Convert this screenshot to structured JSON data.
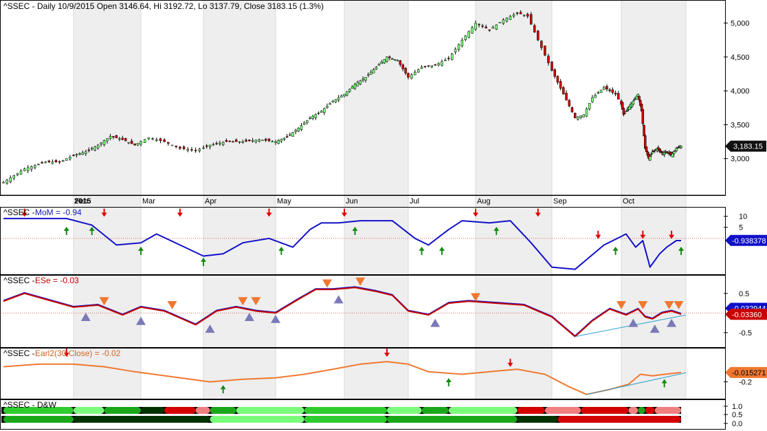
{
  "chart_data": [
    {
      "type": "candlestick",
      "title": "^SSEC - Daily 10/9/2015 Open 3146.64, Hi 3192.72, Lo 3137.79, Close 3183.15 (1.3%)",
      "ylim": [
        2500,
        5300
      ],
      "yticks": [
        3000,
        3500,
        4000,
        4500,
        5000
      ],
      "ytick_labels": [
        "3,000",
        "3,500",
        "4,000",
        "4,500",
        "5,000"
      ],
      "last_value_label": "3,183.15",
      "last_value": 3183.15,
      "x_labels": [
        "2015",
        "Feb",
        "Mar",
        "Apr",
        "May",
        "Jun",
        "Jul",
        "Aug",
        "Sep",
        "Oct"
      ],
      "price_points": [
        [
          0,
          2650
        ],
        [
          6,
          2850
        ],
        [
          12,
          2950
        ],
        [
          16,
          2950
        ],
        [
          20,
          3050
        ],
        [
          24,
          3100
        ],
        [
          28,
          3200
        ],
        [
          32,
          3330
        ],
        [
          36,
          3280
        ],
        [
          40,
          3200
        ],
        [
          44,
          3310
        ],
        [
          48,
          3250
        ],
        [
          52,
          3150
        ],
        [
          56,
          3120
        ],
        [
          60,
          3200
        ],
        [
          65,
          3250
        ],
        [
          70,
          3250
        ],
        [
          75,
          3280
        ],
        [
          80,
          3250
        ],
        [
          84,
          3320
        ],
        [
          88,
          3450
        ],
        [
          92,
          3600
        ],
        [
          96,
          3700
        ],
        [
          100,
          3850
        ],
        [
          104,
          3950
        ],
        [
          108,
          4100
        ],
        [
          112,
          4200
        ],
        [
          116,
          4350
        ],
        [
          120,
          4500
        ],
        [
          124,
          4450
        ],
        [
          128,
          4200
        ],
        [
          132,
          4350
        ],
        [
          136,
          4380
        ],
        [
          140,
          4480
        ],
        [
          144,
          4750
        ],
        [
          148,
          5000
        ],
        [
          152,
          4900
        ],
        [
          156,
          5050
        ],
        [
          160,
          5150
        ],
        [
          163,
          5100
        ],
        [
          166,
          4750
        ],
        [
          170,
          4300
        ],
        [
          174,
          3950
        ],
        [
          178,
          3600
        ],
        [
          181,
          3650
        ],
        [
          184,
          3900
        ],
        [
          188,
          4050
        ],
        [
          192,
          3950
        ],
        [
          196,
          3650
        ],
        [
          200,
          3750
        ],
        [
          204,
          3850
        ],
        [
          208,
          3950
        ],
        [
          211,
          3700
        ],
        [
          214,
          3150
        ],
        [
          217,
          3000
        ],
        [
          220,
          3100
        ],
        [
          224,
          3150
        ],
        [
          228,
          3080
        ],
        [
          232,
          3100
        ],
        [
          236,
          3050
        ],
        [
          240,
          3150
        ],
        [
          244,
          3183
        ]
      ],
      "shaded_months": [
        1,
        3,
        5,
        7,
        9
      ]
    },
    {
      "type": "line",
      "title": "^SSEC - MoM = -0.94",
      "series_label": "MoM = -0.94",
      "ylim": [
        -15,
        13
      ],
      "yticks": [
        10,
        5
      ],
      "ytick_labels": [
        "10",
        "5"
      ],
      "last_value_label": "-0.938378",
      "last_value": -0.938,
      "ref_value": 0,
      "points": [
        [
          0,
          9
        ],
        [
          10,
          9
        ],
        [
          18,
          9
        ],
        [
          26,
          6
        ],
        [
          34,
          -3
        ],
        [
          42,
          -2
        ],
        [
          46,
          2
        ],
        [
          52,
          -3
        ],
        [
          58,
          -8
        ],
        [
          64,
          -7
        ],
        [
          70,
          -2
        ],
        [
          78,
          0
        ],
        [
          86,
          -4
        ],
        [
          92,
          4
        ],
        [
          96,
          7
        ],
        [
          102,
          7
        ],
        [
          110,
          8
        ],
        [
          116,
          8
        ],
        [
          122,
          8
        ],
        [
          130,
          0
        ],
        [
          134,
          -3
        ],
        [
          140,
          4
        ],
        [
          144,
          8
        ],
        [
          152,
          7
        ],
        [
          158,
          8
        ],
        [
          164,
          -2
        ],
        [
          170,
          -13
        ],
        [
          178,
          -14
        ],
        [
          188,
          -3
        ],
        [
          198,
          2
        ],
        [
          206,
          -4
        ],
        [
          212,
          -1
        ],
        [
          218,
          -13
        ],
        [
          226,
          -7
        ],
        [
          232,
          -4
        ],
        [
          240,
          -1
        ],
        [
          244,
          -1
        ]
      ],
      "down_arrows": [
        [
          6,
          11
        ],
        [
          30,
          11
        ],
        [
          52,
          11
        ],
        [
          78,
          11
        ],
        [
          104,
          11
        ],
        [
          148,
          11
        ],
        [
          166,
          11
        ],
        [
          186,
          1
        ],
        [
          212,
          1
        ],
        [
          236,
          1
        ]
      ],
      "up_arrows": [
        [
          18,
          4
        ],
        [
          26,
          4
        ],
        [
          42,
          -5
        ],
        [
          58,
          -10
        ],
        [
          82,
          -5
        ],
        [
          108,
          4
        ],
        [
          132,
          -5
        ],
        [
          138,
          -5
        ],
        [
          154,
          4
        ],
        [
          192,
          -5
        ],
        [
          244,
          -5
        ]
      ]
    },
    {
      "type": "line",
      "title": "^SSEC - ESe = -0.03",
      "series_label": "ESe = -0.03",
      "ylim": [
        -0.8,
        0.9
      ],
      "yticks": [
        0.5,
        -0.5
      ],
      "ytick_labels": [
        "0.5",
        "-0.5"
      ],
      "value_labels": [
        "-0.032944",
        "-0.03360"
      ],
      "values": [
        -0.032944,
        -0.0336
      ],
      "ref_value": 0,
      "points": [
        [
          0,
          0.3
        ],
        [
          6,
          0.5
        ],
        [
          12,
          0.35
        ],
        [
          20,
          0.15
        ],
        [
          28,
          0.2
        ],
        [
          36,
          -0.05
        ],
        [
          42,
          0.15
        ],
        [
          48,
          0.05
        ],
        [
          56,
          -0.3
        ],
        [
          62,
          0.05
        ],
        [
          68,
          0.15
        ],
        [
          74,
          0.05
        ],
        [
          80,
          0.0
        ],
        [
          88,
          0.35
        ],
        [
          94,
          0.6
        ],
        [
          100,
          0.6
        ],
        [
          108,
          0.65
        ],
        [
          116,
          0.55
        ],
        [
          122,
          0.45
        ],
        [
          128,
          0.05
        ],
        [
          134,
          -0.05
        ],
        [
          140,
          0.25
        ],
        [
          146,
          0.3
        ],
        [
          154,
          0.25
        ],
        [
          162,
          0.2
        ],
        [
          170,
          -0.1
        ],
        [
          178,
          -0.6
        ],
        [
          184,
          -0.2
        ],
        [
          190,
          0.1
        ],
        [
          198,
          -0.05
        ],
        [
          208,
          0.1
        ],
        [
          214,
          -0.1
        ],
        [
          220,
          -0.15
        ],
        [
          228,
          0.0
        ],
        [
          236,
          0.05
        ],
        [
          244,
          -0.03
        ]
      ],
      "down_triangles": [
        [
          30,
          0.3
        ],
        [
          50,
          0.2
        ],
        [
          70,
          0.3
        ],
        [
          74,
          0.3
        ],
        [
          98,
          0.75
        ],
        [
          110,
          0.8
        ],
        [
          148,
          0.4
        ],
        [
          194,
          0.2
        ],
        [
          212,
          0.2
        ],
        [
          234,
          0.2
        ],
        [
          242,
          0.2
        ]
      ],
      "up_triangles": [
        [
          24,
          -0.1
        ],
        [
          42,
          -0.2
        ],
        [
          60,
          -0.4
        ],
        [
          72,
          -0.1
        ],
        [
          80,
          -0.15
        ],
        [
          102,
          0.35
        ],
        [
          136,
          -0.25
        ],
        [
          204,
          -0.25
        ],
        [
          222,
          -0.4
        ],
        [
          236,
          -0.25
        ]
      ],
      "trendline": [
        [
          178,
          -0.6
        ],
        [
          248,
          -0.05
        ]
      ]
    },
    {
      "type": "line",
      "title": "^SSEC - Earl2(30,Close) = -0.02",
      "series_label": "Earl2(30,Close) = -0.02",
      "ylim": [
        -0.48,
        0.42
      ],
      "yticks": [
        -0.2
      ],
      "ytick_labels": [
        "-0.2"
      ],
      "last_value_label": "-0.015271",
      "last_value": -0.015,
      "points": [
        [
          0,
          0.1
        ],
        [
          10,
          0.15
        ],
        [
          20,
          0.15
        ],
        [
          30,
          0.1
        ],
        [
          40,
          0.0
        ],
        [
          50,
          -0.1
        ],
        [
          60,
          -0.2
        ],
        [
          70,
          -0.15
        ],
        [
          80,
          -0.12
        ],
        [
          90,
          -0.05
        ],
        [
          100,
          0.05
        ],
        [
          110,
          0.15
        ],
        [
          120,
          0.2
        ],
        [
          128,
          0.15
        ],
        [
          134,
          0.0
        ],
        [
          144,
          -0.05
        ],
        [
          152,
          0.0
        ],
        [
          160,
          0.05
        ],
        [
          168,
          -0.05
        ],
        [
          176,
          -0.3
        ],
        [
          182,
          -0.45
        ],
        [
          190,
          -0.35
        ],
        [
          200,
          -0.25
        ],
        [
          210,
          -0.05
        ],
        [
          220,
          -0.08
        ],
        [
          230,
          -0.05
        ],
        [
          244,
          -0.015
        ]
      ],
      "down_arrows": [
        [
          18,
          0.35
        ],
        [
          120,
          0.35
        ],
        [
          158,
          0.15
        ]
      ],
      "up_arrows": [
        [
          64,
          -0.32
        ],
        [
          140,
          -0.18
        ],
        [
          230,
          -0.2
        ]
      ],
      "trendline": [
        [
          182,
          -0.45
        ],
        [
          252,
          -0.02
        ]
      ]
    },
    {
      "type": "bar",
      "title": "^SSEC - D&W",
      "yticks": [
        1.0,
        0.5,
        0.0
      ],
      "ytick_labels": [
        "1.0",
        "0.5",
        "0.0"
      ],
      "rows": [
        {
          "name": "row1",
          "segments": [
            [
              0,
              20,
              "#2ecc2e"
            ],
            [
              20,
              30,
              "#7cfc7c"
            ],
            [
              30,
              42,
              "#1aa81a"
            ],
            [
              42,
              48,
              "#003300"
            ],
            [
              48,
              56,
              "#d40000"
            ],
            [
              56,
              60,
              "#f08080"
            ],
            [
              60,
              68,
              "#1aa81a"
            ],
            [
              68,
              90,
              "#7cfc7c"
            ],
            [
              90,
              120,
              "#2ecc2e"
            ],
            [
              120,
              132,
              "#7cfc7c"
            ],
            [
              132,
              140,
              "#1aa81a"
            ],
            [
              140,
              160,
              "#7cfc7c"
            ],
            [
              160,
              168,
              "#d40000"
            ],
            [
              168,
              180,
              "#f08080"
            ],
            [
              180,
              200,
              "#d40000"
            ],
            [
              200,
              208,
              "#f08080"
            ],
            [
              208,
              214,
              "#1aa81a"
            ],
            [
              214,
              222,
              "#d40000"
            ],
            [
              222,
              244,
              "#f08080"
            ]
          ]
        },
        {
          "name": "row2",
          "segments": [
            [
              0,
              20,
              "#1aa81a"
            ],
            [
              20,
              60,
              "#003300"
            ],
            [
              60,
              90,
              "#7cfc7c"
            ],
            [
              90,
              120,
              "#2ecc2e"
            ],
            [
              120,
              160,
              "#1aa81a"
            ],
            [
              160,
              172,
              "#003300"
            ],
            [
              172,
              244,
              "#d40000"
            ]
          ]
        }
      ]
    }
  ]
}
